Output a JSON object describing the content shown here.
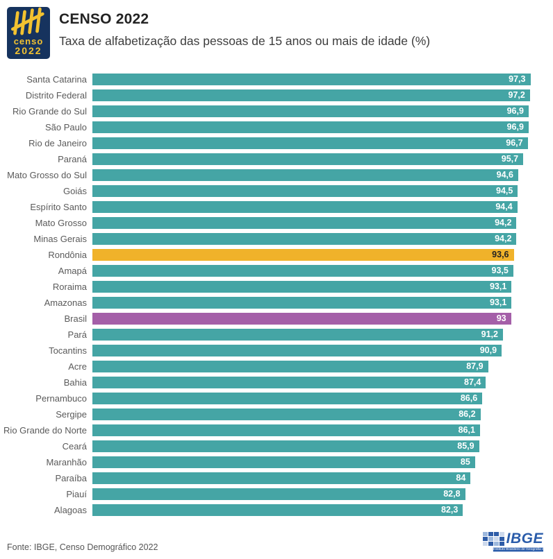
{
  "header": {
    "logo_word": "censo",
    "logo_year": "2022",
    "title": "CENSO 2022",
    "subtitle": "Taxa de alfabetização das pessoas de 15 anos ou mais de idade (%)"
  },
  "chart_data": {
    "type": "bar",
    "orientation": "horizontal",
    "title": "Taxa de alfabetização das pessoas de 15 anos ou mais de idade (%)",
    "xlabel": "",
    "ylabel": "",
    "xlim": [
      0,
      100
    ],
    "grid": false,
    "legend": false,
    "value_labels_inside_bars": true,
    "colors": {
      "default": "#45a5a5",
      "rondonia": "#f0b22a",
      "brasil": "#a45fa8"
    },
    "rows": [
      {
        "name": "Santa Catarina",
        "value": 97.3,
        "label": "97,3",
        "color_key": "default"
      },
      {
        "name": "Distrito Federal",
        "value": 97.2,
        "label": "97,2",
        "color_key": "default"
      },
      {
        "name": "Rio Grande do Sul",
        "value": 96.9,
        "label": "96,9",
        "color_key": "default"
      },
      {
        "name": "São Paulo",
        "value": 96.9,
        "label": "96,9",
        "color_key": "default"
      },
      {
        "name": "Rio de Janeiro",
        "value": 96.7,
        "label": "96,7",
        "color_key": "default"
      },
      {
        "name": "Paraná",
        "value": 95.7,
        "label": "95,7",
        "color_key": "default"
      },
      {
        "name": "Mato Grosso do Sul",
        "value": 94.6,
        "label": "94,6",
        "color_key": "default"
      },
      {
        "name": "Goiás",
        "value": 94.5,
        "label": "94,5",
        "color_key": "default"
      },
      {
        "name": "Espírito Santo",
        "value": 94.4,
        "label": "94,4",
        "color_key": "default"
      },
      {
        "name": "Mato Grosso",
        "value": 94.2,
        "label": "94,2",
        "color_key": "default"
      },
      {
        "name": "Minas Gerais",
        "value": 94.2,
        "label": "94,2",
        "color_key": "default"
      },
      {
        "name": "Rondônia",
        "value": 93.6,
        "label": "93,6",
        "color_key": "rondonia"
      },
      {
        "name": "Amapá",
        "value": 93.5,
        "label": "93,5",
        "color_key": "default"
      },
      {
        "name": "Roraima",
        "value": 93.1,
        "label": "93,1",
        "color_key": "default"
      },
      {
        "name": "Amazonas",
        "value": 93.1,
        "label": "93,1",
        "color_key": "default"
      },
      {
        "name": "Brasil",
        "value": 93.0,
        "label": "93",
        "color_key": "brasil"
      },
      {
        "name": "Pará",
        "value": 91.2,
        "label": "91,2",
        "color_key": "default"
      },
      {
        "name": "Tocantins",
        "value": 90.9,
        "label": "90,9",
        "color_key": "default"
      },
      {
        "name": "Acre",
        "value": 87.9,
        "label": "87,9",
        "color_key": "default"
      },
      {
        "name": "Bahia",
        "value": 87.4,
        "label": "87,4",
        "color_key": "default"
      },
      {
        "name": "Pernambuco",
        "value": 86.6,
        "label": "86,6",
        "color_key": "default"
      },
      {
        "name": "Sergipe",
        "value": 86.2,
        "label": "86,2",
        "color_key": "default"
      },
      {
        "name": "Rio Grande do Norte",
        "value": 86.1,
        "label": "86,1",
        "color_key": "default"
      },
      {
        "name": "Ceará",
        "value": 85.9,
        "label": "85,9",
        "color_key": "default"
      },
      {
        "name": "Maranhão",
        "value": 85.0,
        "label": "85",
        "color_key": "default"
      },
      {
        "name": "Paraíba",
        "value": 84.0,
        "label": "84",
        "color_key": "default"
      },
      {
        "name": "Piauí",
        "value": 82.8,
        "label": "82,8",
        "color_key": "default"
      },
      {
        "name": "Alagoas",
        "value": 82.3,
        "label": "82,3",
        "color_key": "default"
      }
    ]
  },
  "footer": {
    "source": "Fonte: IBGE, Censo Demográfico 2022",
    "ibge_logo_word": "IBGE",
    "ibge_logo_tagline": "Instituto Brasileiro de Geografia e Estatística"
  }
}
